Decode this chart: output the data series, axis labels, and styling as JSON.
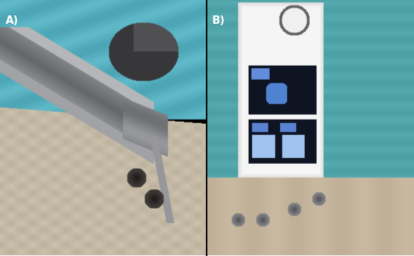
{
  "figure_width": 5.91,
  "figure_height": 3.66,
  "dpi": 100,
  "background_color": "#ffffff",
  "border_color": "#000000",
  "border_linewidth": 1.5,
  "panel_A_label": "A)",
  "panel_B_label": "B)",
  "label_fontsize": 11,
  "label_color_A": "#ffffff",
  "label_color_B": "#ffffff",
  "panel_split": 0.4992
}
